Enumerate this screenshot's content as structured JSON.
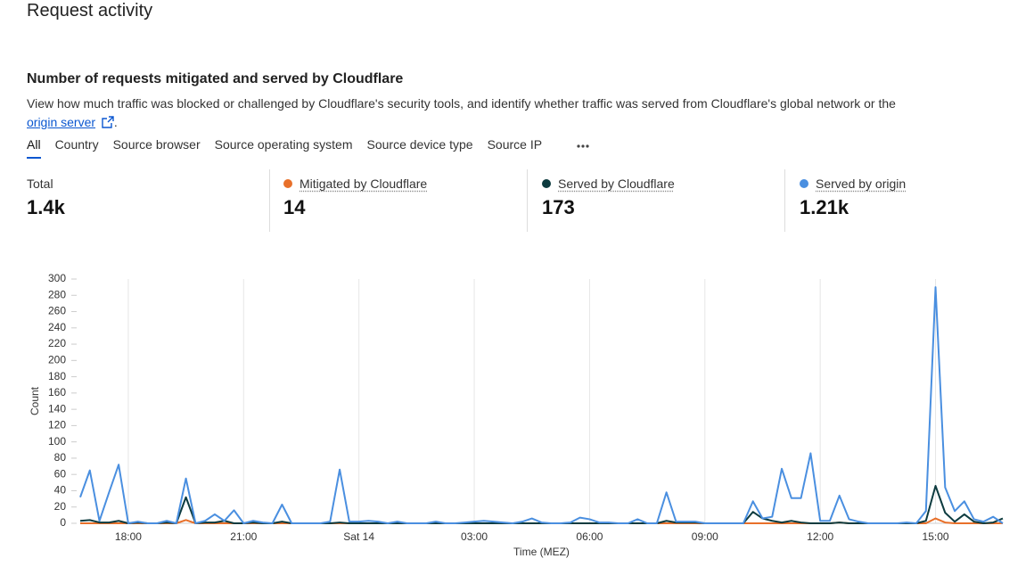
{
  "header": {
    "title": "Request activity"
  },
  "section": {
    "title": "Number of requests mitigated and served by Cloudflare",
    "description": "View how much traffic was blocked or challenged by Cloudflare's security tools, and identify whether traffic was served from Cloudflare's global network or the",
    "link": "origin server",
    "link_suffix": "."
  },
  "tabs": [
    "All",
    "Country",
    "Source browser",
    "Source operating system",
    "Source device type",
    "Source IP"
  ],
  "summary": {
    "total_label": "Total",
    "total": "1.4k",
    "values": [
      "14",
      "173",
      "1.21k"
    ]
  },
  "chart_data": {
    "type": "line",
    "x_label": "Time (MEZ)",
    "y_label": "Count",
    "x": [
      16.75,
      17,
      17.25,
      17.5,
      17.75,
      18,
      18.25,
      18.5,
      18.75,
      19,
      19.25,
      19.5,
      19.75,
      20,
      20.25,
      20.5,
      20.75,
      21,
      21.25,
      21.5,
      21.75,
      22,
      22.25,
      22.5,
      22.75,
      23,
      23.25,
      23.5,
      23.75,
      24,
      24.25,
      24.5,
      24.75,
      25,
      25.25,
      25.5,
      25.75,
      26,
      26.25,
      26.5,
      26.75,
      27,
      27.25,
      27.5,
      27.75,
      28,
      28.25,
      28.5,
      28.75,
      29,
      29.25,
      29.5,
      29.75,
      30,
      30.25,
      30.5,
      30.75,
      31,
      31.25,
      31.5,
      31.75,
      32,
      32.25,
      32.5,
      32.75,
      33,
      33.25,
      33.5,
      33.75,
      34,
      34.25,
      34.5,
      34.75,
      35,
      35.25,
      35.5,
      35.75,
      36,
      36.25,
      36.5,
      36.75,
      37,
      37.25,
      37.5,
      37.75,
      38,
      38.25,
      38.5,
      38.75,
      39,
      39.25,
      39.5,
      39.75,
      40,
      40.25,
      40.5,
      40.75
    ],
    "xlim": [
      16.75,
      40.75
    ],
    "xticks": [
      {
        "value": 18,
        "label": "18:00"
      },
      {
        "value": 21,
        "label": "21:00"
      },
      {
        "value": 24,
        "label": "Sat 14"
      },
      {
        "value": 27,
        "label": "03:00"
      },
      {
        "value": 30,
        "label": "06:00"
      },
      {
        "value": 33,
        "label": "09:00"
      },
      {
        "value": 36,
        "label": "12:00"
      },
      {
        "value": 39,
        "label": "15:00"
      }
    ],
    "ylim": [
      0,
      300
    ],
    "yticks": [
      0,
      20,
      40,
      60,
      80,
      100,
      120,
      140,
      160,
      180,
      200,
      220,
      240,
      260,
      280,
      300
    ],
    "grid": "x",
    "series": [
      {
        "name": "Mitigated by Cloudflare",
        "color": "#e8702a",
        "values": [
          0,
          0,
          0,
          0,
          0,
          0,
          0,
          0,
          0,
          0,
          0,
          4,
          0,
          0,
          0,
          0,
          0,
          0,
          0,
          0,
          0,
          0,
          0,
          0,
          0,
          0,
          0,
          0,
          0,
          0,
          0,
          0,
          0,
          0,
          0,
          0,
          0,
          0,
          0,
          0,
          0,
          0,
          0,
          0,
          0,
          0,
          0,
          0,
          0,
          0,
          0,
          0,
          0,
          0,
          0,
          0,
          0,
          0,
          0,
          0,
          0,
          0,
          0,
          0,
          0,
          0,
          0,
          0,
          0,
          0,
          0,
          0,
          0,
          0,
          0,
          0,
          0,
          0,
          0,
          1,
          0,
          0,
          0,
          0,
          0,
          0,
          0,
          0,
          0,
          6,
          1,
          0,
          0,
          0,
          0,
          0,
          0
        ]
      },
      {
        "name": "Served by Cloudflare",
        "color": "#0d3b3f",
        "values": [
          3,
          4,
          1,
          1,
          3,
          0,
          1,
          0,
          0,
          1,
          0,
          32,
          0,
          1,
          1,
          3,
          0,
          0,
          1,
          0,
          0,
          2,
          0,
          0,
          0,
          0,
          0,
          1,
          0,
          0,
          0,
          0,
          0,
          0,
          0,
          0,
          0,
          0,
          0,
          0,
          0,
          0,
          0,
          0,
          0,
          0,
          0,
          0,
          0,
          0,
          0,
          0,
          0,
          0,
          0,
          0,
          0,
          0,
          0,
          0,
          0,
          3,
          1,
          1,
          1,
          0,
          0,
          0,
          0,
          0,
          14,
          6,
          3,
          1,
          3,
          1,
          0,
          0,
          0,
          1,
          0,
          0,
          0,
          0,
          0,
          0,
          0,
          0,
          3,
          46,
          13,
          2,
          11,
          2,
          0,
          1,
          6
        ]
      },
      {
        "name": "Served by origin",
        "color": "#4a8fe0",
        "values": [
          32,
          65,
          3,
          38,
          72,
          0,
          2,
          0,
          0,
          3,
          0,
          55,
          0,
          3,
          11,
          3,
          16,
          0,
          3,
          1,
          0,
          23,
          0,
          0,
          0,
          0,
          2,
          66,
          2,
          2,
          3,
          2,
          0,
          2,
          0,
          0,
          0,
          2,
          0,
          0,
          1,
          2,
          3,
          2,
          1,
          0,
          2,
          6,
          1,
          0,
          0,
          1,
          7,
          5,
          1,
          1,
          0,
          0,
          5,
          0,
          0,
          38,
          2,
          2,
          2,
          0,
          0,
          0,
          0,
          0,
          27,
          6,
          8,
          67,
          31,
          31,
          86,
          3,
          3,
          34,
          5,
          2,
          0,
          0,
          0,
          0,
          1,
          0,
          15,
          290,
          44,
          15,
          27,
          5,
          2,
          8,
          0
        ]
      }
    ]
  }
}
